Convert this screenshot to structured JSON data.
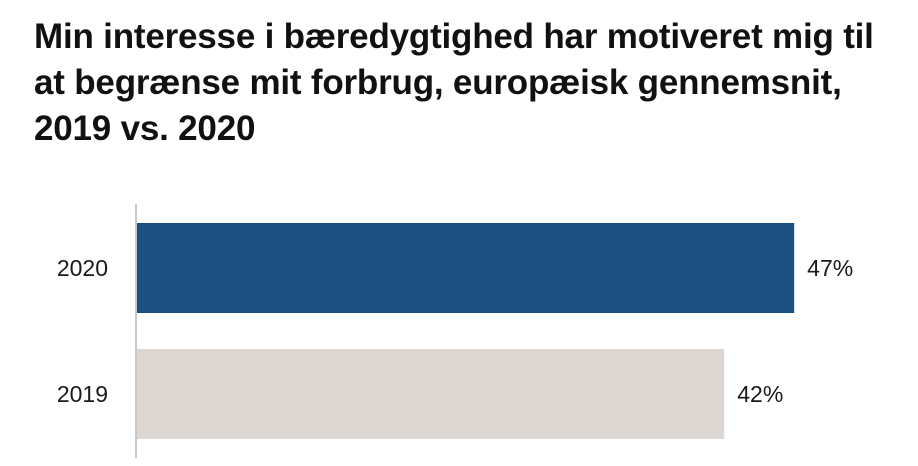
{
  "chart_data": {
    "type": "bar",
    "orientation": "horizontal",
    "title": "Min interesse i bæredygtighed har motiveret mig til at begrænse mit forbrug, europæisk gennemsnit, 2019 vs. 2020",
    "categories": [
      "2020",
      "2019"
    ],
    "values": [
      47,
      42
    ],
    "value_labels": [
      "47%",
      "42%"
    ],
    "unit": "%",
    "xlim": [
      0,
      56.5
    ],
    "grid": false,
    "legend": "none",
    "colors": [
      "#1c4f82",
      "#dcd7d2"
    ]
  }
}
